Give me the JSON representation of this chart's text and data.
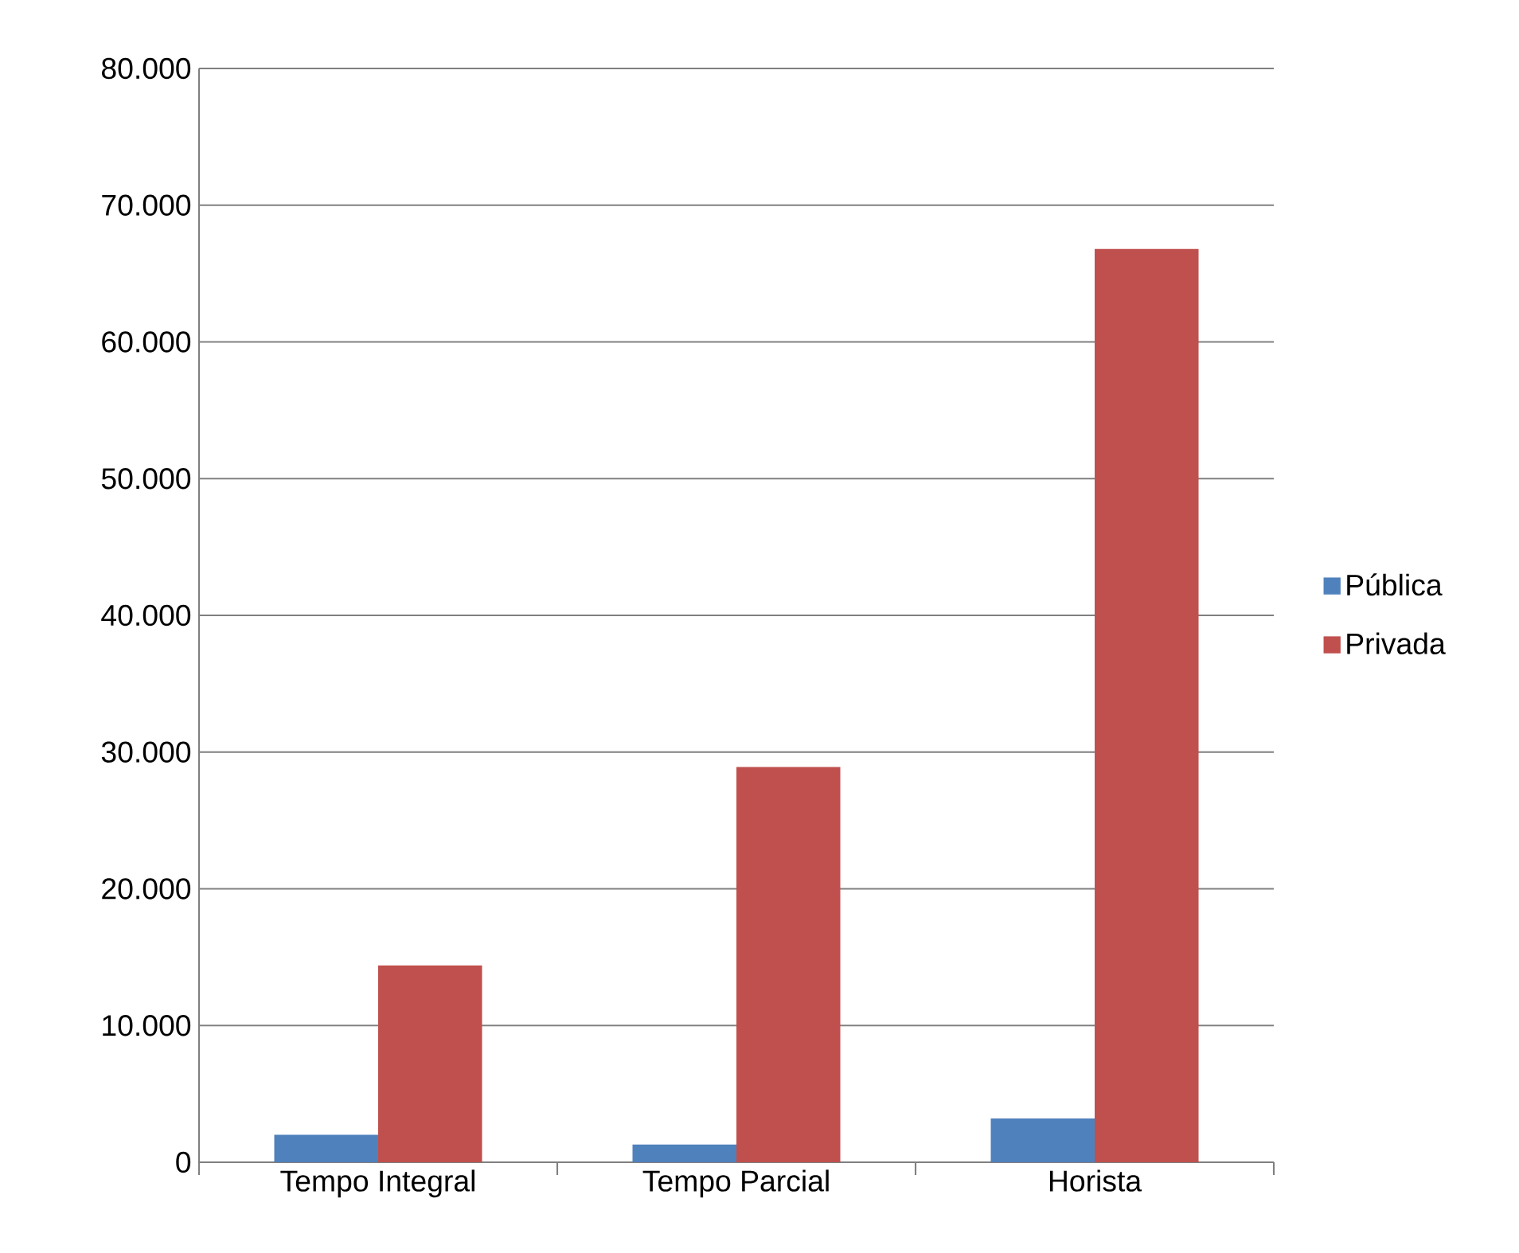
{
  "chart_data": {
    "type": "bar",
    "categories": [
      "Tempo Integral",
      "Tempo Parcial",
      "Horista"
    ],
    "series": [
      {
        "name": "Pública",
        "color": "#4f81bd",
        "values": [
          2000,
          1300,
          3200
        ]
      },
      {
        "name": "Privada",
        "color": "#c0504d",
        "values": [
          14400,
          28900,
          66800
        ]
      }
    ],
    "ylim": [
      0,
      80000
    ],
    "yticks": [
      0,
      {
        "value": 10000,
        "label": "10.000"
      },
      {
        "value": 20000,
        "label": "20.000"
      },
      {
        "value": 30000,
        "label": "30.000"
      },
      {
        "value": 40000,
        "label": "40.000"
      },
      {
        "value": 50000,
        "label": "50.000"
      },
      {
        "value": 60000,
        "label": "60.000"
      },
      {
        "value": 70000,
        "label": "70.000"
      },
      {
        "value": 80000,
        "label": "80.000"
      }
    ],
    "grid": "y",
    "legend": "right"
  }
}
